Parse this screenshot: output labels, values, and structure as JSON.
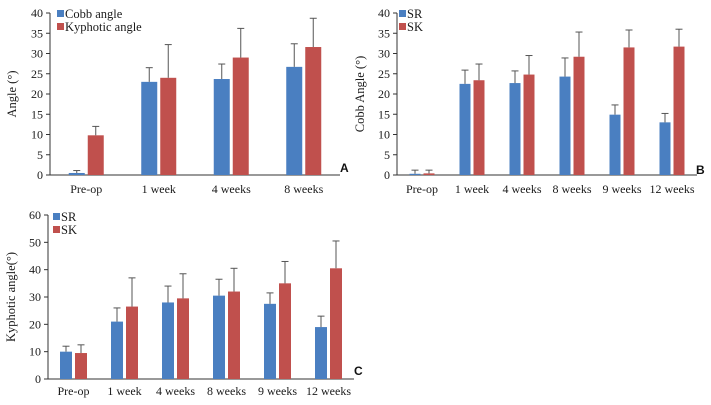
{
  "chart_data": [
    {
      "type": "bar",
      "panel_label": "A",
      "xlabel": "",
      "ylabel": "Angle (°)",
      "ylim": [
        0,
        40
      ],
      "yticks": [
        0,
        5,
        10,
        15,
        20,
        25,
        30,
        35,
        40
      ],
      "categories": [
        "Pre-op",
        "1 week",
        "4 weeks",
        "8 weeks"
      ],
      "series": [
        {
          "name": "Cobb angle",
          "values": [
            0.5,
            23,
            23.7,
            26.7
          ],
          "errors": [
            0.6,
            3.5,
            3.7,
            5.7
          ],
          "color": "#4a7fc1"
        },
        {
          "name": "Kyphotic angle",
          "values": [
            9.8,
            24,
            29,
            31.6
          ],
          "errors": [
            2.2,
            8.2,
            7.2,
            7.1
          ],
          "color": "#c0504d"
        }
      ],
      "legend": "top-left"
    },
    {
      "type": "bar",
      "panel_label": "B",
      "xlabel": "",
      "ylabel": "Cobb Angle (°)",
      "ylim": [
        0,
        40
      ],
      "yticks": [
        0,
        5,
        10,
        15,
        20,
        25,
        30,
        35,
        40
      ],
      "categories": [
        "Pre-op",
        "1 week",
        "4 weeks",
        "8 weeks",
        "9 weeks",
        "12 weeks"
      ],
      "series": [
        {
          "name": "SR",
          "values": [
            0.3,
            22.5,
            22.7,
            24.3,
            14.9,
            13
          ],
          "errors": [
            0.9,
            3.4,
            3,
            4.6,
            2.4,
            2.2
          ],
          "color": "#4a7fc1"
        },
        {
          "name": "SK",
          "values": [
            0.4,
            23.4,
            24.8,
            29.2,
            31.5,
            31.7
          ],
          "errors": [
            0.8,
            4,
            4.7,
            6.1,
            4.3,
            4.3
          ],
          "color": "#c0504d"
        }
      ],
      "legend": "top-left"
    },
    {
      "type": "bar",
      "panel_label": "C",
      "xlabel": "",
      "ylabel": "Kyphotic angle(°)",
      "ylim": [
        0,
        60
      ],
      "yticks": [
        0,
        10,
        20,
        30,
        40,
        50,
        60
      ],
      "categories": [
        "Pre-op",
        "1 week",
        "4 weeks",
        "8 weeks",
        "9 weeks",
        "12 weeks"
      ],
      "series": [
        {
          "name": "SR",
          "values": [
            10,
            21,
            28,
            30.5,
            27.5,
            19
          ],
          "errors": [
            2,
            5,
            6,
            6,
            4,
            4
          ],
          "color": "#4a7fc1"
        },
        {
          "name": "SK",
          "values": [
            9.5,
            26.5,
            29.5,
            32,
            35,
            40.5
          ],
          "errors": [
            3,
            10.5,
            9,
            8.5,
            8,
            10
          ],
          "color": "#c0504d"
        }
      ],
      "legend": "top-left"
    }
  ]
}
